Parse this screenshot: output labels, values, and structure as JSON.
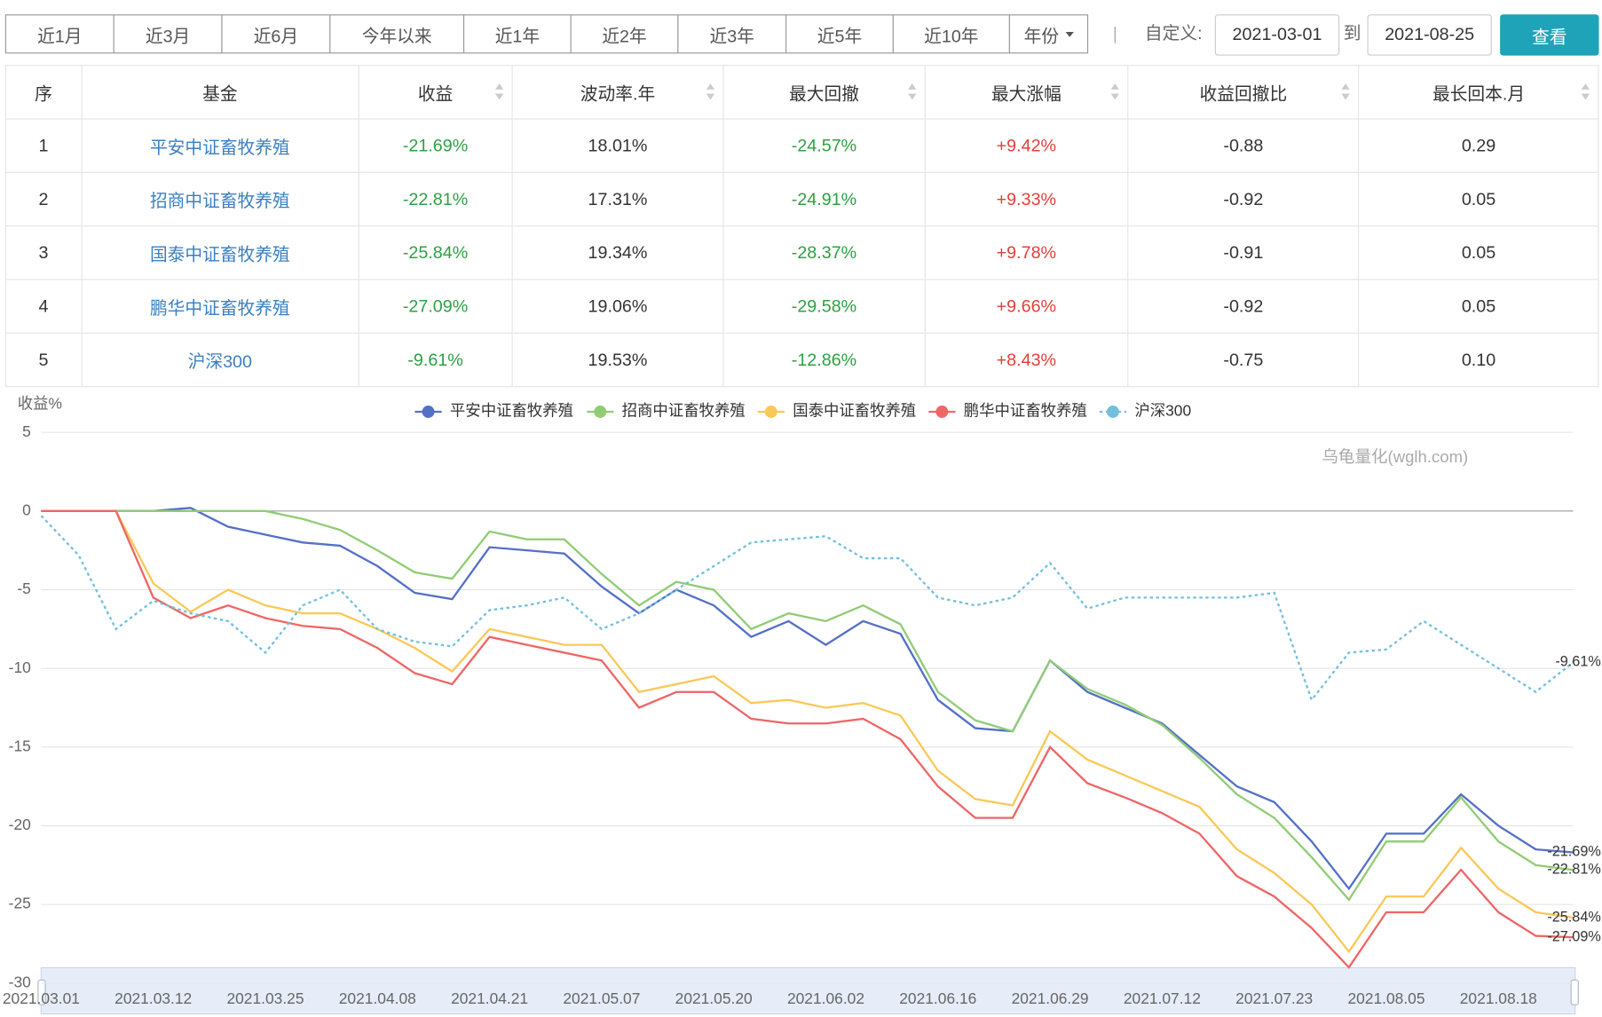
{
  "toolbar": {
    "periods": [
      "近1月",
      "近3月",
      "近6月",
      "今年以来",
      "近1年",
      "近2年",
      "近3年",
      "近5年",
      "近10年",
      "年份"
    ],
    "custom_label": "自定义:",
    "start": "2021-03-01",
    "to": "到",
    "end": "2021-08-25",
    "button": "查看"
  },
  "table": {
    "headers": [
      "序",
      "基金",
      "收益",
      "波动率.年",
      "最大回撤",
      "最大涨幅",
      "收益回撤比",
      "最长回本.月"
    ],
    "rows": [
      [
        "1",
        "平安中证畜牧养殖",
        "-21.69%",
        "18.01%",
        "-24.57%",
        "+9.42%",
        "-0.88",
        "0.29"
      ],
      [
        "2",
        "招商中证畜牧养殖",
        "-22.81%",
        "17.31%",
        "-24.91%",
        "+9.33%",
        "-0.92",
        "0.05"
      ],
      [
        "3",
        "国泰中证畜牧养殖",
        "-25.84%",
        "19.34%",
        "-28.37%",
        "+9.78%",
        "-0.91",
        "0.05"
      ],
      [
        "4",
        "鹏华中证畜牧养殖",
        "-27.09%",
        "19.06%",
        "-29.58%",
        "+9.66%",
        "-0.92",
        "0.05"
      ],
      [
        "5",
        "沪深300",
        "-9.61%",
        "19.53%",
        "-12.86%",
        "+8.43%",
        "-0.75",
        "0.10"
      ]
    ]
  },
  "chart_data": {
    "type": "line",
    "y_label": "收益%",
    "watermark": "乌龟量化(wglh.com)",
    "categories": [
      "2021.03.01",
      null,
      null,
      "2021.03.12",
      null,
      null,
      "2021.03.25",
      null,
      null,
      "2021.04.08",
      null,
      null,
      "2021.04.21",
      null,
      null,
      "2021.05.07",
      null,
      null,
      "2021.05.20",
      null,
      null,
      "2021.06.02",
      null,
      null,
      "2021.06.16",
      null,
      null,
      "2021.06.29",
      null,
      null,
      "2021.07.12",
      null,
      null,
      "2021.07.23",
      null,
      null,
      "2021.08.05",
      null,
      null,
      "2021.08.18",
      null,
      null
    ],
    "ylim": [
      -30,
      5
    ],
    "yticks": [
      -30,
      -25,
      -20,
      -15,
      -10,
      -5,
      0,
      5
    ],
    "grid": true,
    "series": [
      {
        "name": "平安中证畜牧养殖",
        "color": "#5470c6",
        "dash": false,
        "values": [
          0,
          0,
          0,
          0,
          0.2,
          -1,
          -1.5,
          -2,
          -2.2,
          -3.5,
          -5.2,
          -5.6,
          -2.3,
          -2.5,
          -2.7,
          -4.8,
          -6.5,
          -5,
          -6,
          -8,
          -7,
          -8.5,
          -7,
          -7.8,
          -12,
          -13.8,
          -14,
          -9.5,
          -11.5,
          -12.5,
          -13.5,
          -15.5,
          -17.5,
          -18.5,
          -21,
          -24,
          -20.5,
          -20.5,
          -18,
          -20,
          -21.5,
          -21.69
        ],
        "value_labels": [
          null,
          null,
          null,
          null,
          null,
          null,
          null,
          null,
          null,
          null,
          null,
          null,
          null,
          null,
          null,
          null,
          null,
          null,
          null,
          null,
          null,
          null,
          null,
          null,
          null,
          null,
          null,
          null,
          null,
          null,
          null,
          null,
          null,
          null,
          null,
          null,
          null,
          null,
          null,
          null,
          null,
          "-21.69%"
        ]
      },
      {
        "name": "招商中证畜牧养殖",
        "color": "#91cc75",
        "dash": false,
        "values": [
          0,
          0,
          0,
          0,
          0,
          0,
          0,
          -0.5,
          -1.2,
          -2.5,
          -3.9,
          -4.3,
          -1.3,
          -1.8,
          -1.8,
          -4,
          -6,
          -4.5,
          -5,
          -7.5,
          -6.5,
          -7,
          -6,
          -7.2,
          -11.5,
          -13.3,
          -14,
          -9.5,
          -11.3,
          -12.3,
          -13.6,
          -15.7,
          -18,
          -19.5,
          -22,
          -24.7,
          -21,
          -21,
          -18.2,
          -21,
          -22.5,
          -22.81
        ],
        "value_labels": [
          null,
          null,
          null,
          null,
          null,
          null,
          null,
          null,
          null,
          null,
          null,
          null,
          null,
          null,
          null,
          null,
          null,
          null,
          null,
          null,
          null,
          null,
          null,
          null,
          null,
          null,
          null,
          null,
          null,
          null,
          null,
          null,
          null,
          null,
          null,
          null,
          null,
          null,
          null,
          null,
          null,
          "-22.81%"
        ]
      },
      {
        "name": "国泰中证畜牧养殖",
        "color": "#fac858",
        "dash": false,
        "values": [
          0,
          0,
          0,
          -4.6,
          -6.4,
          -5,
          -6,
          -6.5,
          -6.5,
          -7.5,
          -8.7,
          -10.2,
          -7.5,
          -8,
          -8.5,
          -8.5,
          -11.5,
          -11,
          -10.5,
          -12.2,
          -12,
          -12.5,
          -12.2,
          -13,
          -16.5,
          -18.3,
          -18.7,
          -14,
          -15.8,
          -16.8,
          -17.8,
          -18.8,
          -21.5,
          -23,
          -25,
          -28,
          -24.5,
          -24.5,
          -21.4,
          -24,
          -25.5,
          -25.84
        ],
        "value_labels": [
          null,
          null,
          null,
          null,
          null,
          null,
          null,
          null,
          null,
          null,
          null,
          null,
          null,
          null,
          null,
          null,
          null,
          null,
          null,
          null,
          null,
          null,
          null,
          null,
          null,
          null,
          null,
          null,
          null,
          null,
          null,
          null,
          null,
          null,
          null,
          null,
          null,
          null,
          null,
          null,
          null,
          "-25.84%"
        ]
      },
      {
        "name": "鹏华中证畜牧养殖",
        "color": "#ee6666",
        "dash": false,
        "values": [
          0,
          0,
          0,
          -5.5,
          -6.8,
          -6,
          -6.8,
          -7.3,
          -7.5,
          -8.7,
          -10.3,
          -11,
          -8,
          -8.5,
          -9,
          -9.5,
          -12.5,
          -11.5,
          -11.5,
          -13.2,
          -13.5,
          -13.5,
          -13.2,
          -14.5,
          -17.5,
          -19.5,
          -19.5,
          -15,
          -17.3,
          -18.2,
          -19.2,
          -20.5,
          -23.2,
          -24.5,
          -26.5,
          -29,
          -25.5,
          -25.5,
          -22.8,
          -25.5,
          -27,
          -27.09
        ],
        "value_labels": [
          null,
          null,
          null,
          null,
          null,
          null,
          null,
          null,
          null,
          null,
          null,
          null,
          null,
          null,
          null,
          null,
          null,
          null,
          null,
          null,
          null,
          null,
          null,
          null,
          null,
          null,
          null,
          null,
          null,
          null,
          null,
          null,
          null,
          null,
          null,
          null,
          null,
          null,
          null,
          null,
          null,
          "-27.09%"
        ]
      },
      {
        "name": "沪深300",
        "color": "#73c0de",
        "dash": true,
        "values": [
          -0.3,
          -2.8,
          -7.5,
          -5.7,
          -6.5,
          -7,
          -9,
          -6,
          -5,
          -7.5,
          -8.3,
          -8.6,
          -6.3,
          -6,
          -5.5,
          -7.5,
          -6.5,
          -5,
          -3.5,
          -2,
          -1.8,
          -1.6,
          -3,
          -3,
          -5.5,
          -6,
          -5.5,
          -3.3,
          -6.2,
          -5.5,
          -5.5,
          -5.5,
          -5.5,
          -5.2,
          -12,
          -9,
          -8.8,
          -7,
          -8.5,
          -10,
          -11.5,
          -9.61
        ],
        "value_labels": [
          null,
          null,
          null,
          null,
          null,
          null,
          null,
          null,
          null,
          null,
          null,
          null,
          null,
          null,
          null,
          null,
          null,
          null,
          null,
          null,
          null,
          null,
          null,
          null,
          null,
          null,
          null,
          null,
          null,
          null,
          null,
          null,
          null,
          null,
          null,
          null,
          null,
          null,
          null,
          null,
          null,
          "-9.61%"
        ]
      }
    ]
  }
}
